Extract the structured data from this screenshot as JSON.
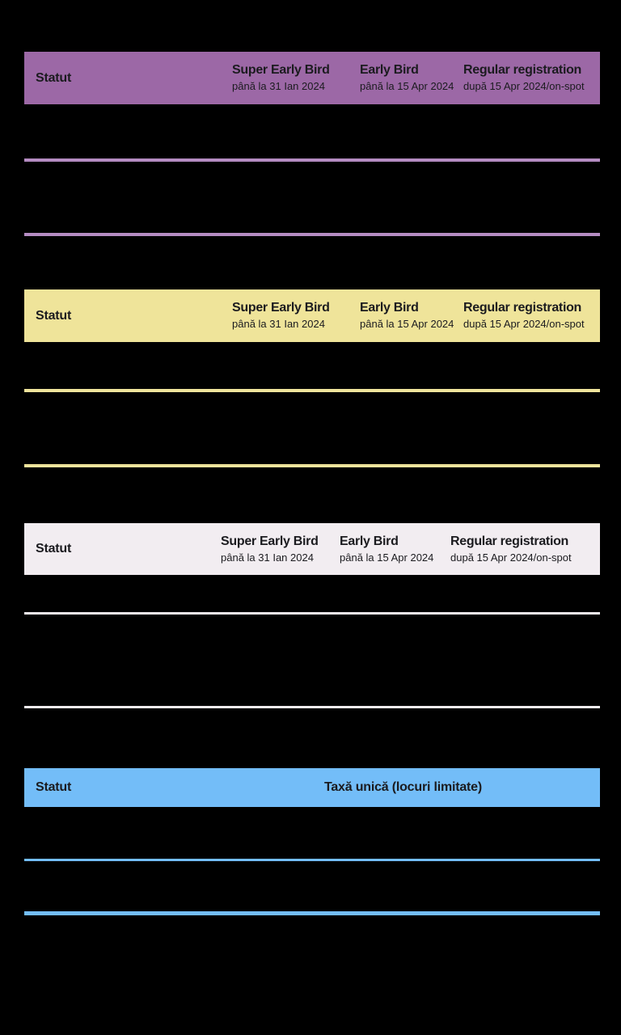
{
  "page": {
    "background": "#000000",
    "text_color": "#1B1B1F"
  },
  "tables": [
    {
      "name": "tier-table-1",
      "theme": "purple",
      "header_bg": "#9C68A6",
      "divider_color": "#B58CC2",
      "header": {
        "statut_label": "Statut",
        "columns": [
          {
            "title": "Super Early Bird",
            "subtitle": "până la 31 Ian 2024"
          },
          {
            "title": "Early Bird",
            "subtitle": "până la 15 Apr 2024"
          },
          {
            "title": "Regular registration",
            "subtitle": "după 15 Apr 2024/on-spot"
          }
        ]
      },
      "visible_rows": 2
    },
    {
      "name": "tier-table-2",
      "theme": "yellow",
      "header_bg": "#EFE49A",
      "divider_color": "#EFE49C",
      "header": {
        "statut_label": "Statut",
        "columns": [
          {
            "title": "Super Early Bird",
            "subtitle": "până la 31 Ian 2024"
          },
          {
            "title": "Early Bird",
            "subtitle": "până la 15 Apr 2024"
          },
          {
            "title": "Regular registration",
            "subtitle": "după 15 Apr 2024/on-spot"
          }
        ]
      },
      "visible_rows": 2
    },
    {
      "name": "tier-table-3",
      "theme": "off-white",
      "header_bg": "#F2EDF1",
      "divider_color": "#F2EDF1",
      "header": {
        "statut_label": "Statut",
        "columns": [
          {
            "title": "Super Early Bird",
            "subtitle": "până la 31 Ian 2024"
          },
          {
            "title": "Early Bird",
            "subtitle": "până la 15 Apr 2024"
          },
          {
            "title": "Regular registration",
            "subtitle": "după 15 Apr 2024/on-spot"
          }
        ]
      },
      "visible_rows": 2
    },
    {
      "name": "single-fee-table",
      "theme": "blue",
      "header_bg": "#73BDF8",
      "divider_color": "#73BDF8",
      "header": {
        "statut_label": "Statut",
        "fee_label": "Taxă unică (locuri limitate)"
      },
      "visible_rows": 2
    }
  ]
}
